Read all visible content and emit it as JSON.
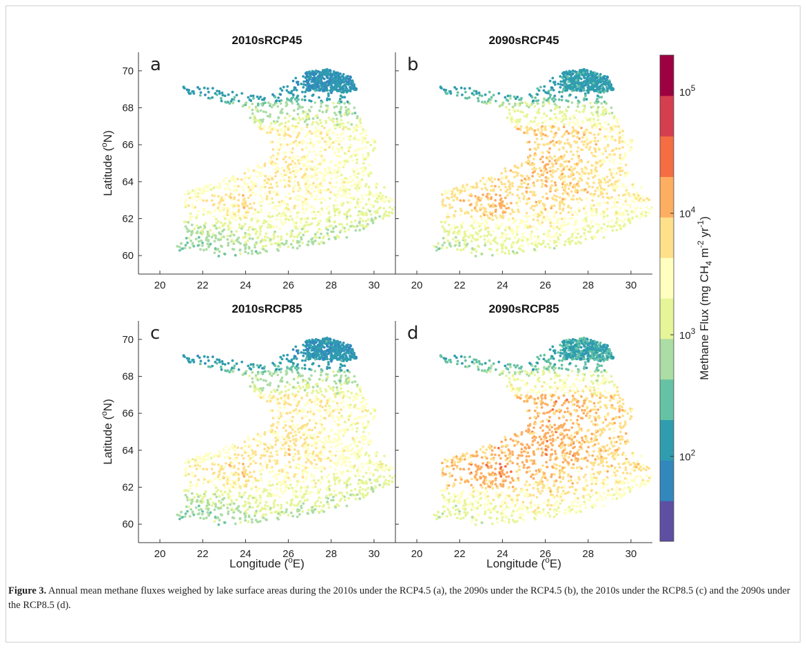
{
  "chart_data": {
    "type": "scatter",
    "layout": "2x2 panels with shared colorbar",
    "panels": [
      {
        "letter": "a",
        "title": "2010sRCP45",
        "scenario": "RCP4.5",
        "period": "2010s"
      },
      {
        "letter": "b",
        "title": "2090sRCP45",
        "scenario": "RCP4.5",
        "period": "2090s"
      },
      {
        "letter": "c",
        "title": "2010sRCP85",
        "scenario": "RCP8.5",
        "period": "2010s"
      },
      {
        "letter": "d",
        "title": "2090sRCP85",
        "scenario": "RCP8.5",
        "period": "2090s"
      }
    ],
    "xlabel_prefix": "Longitude (",
    "xlabel_sup": "o",
    "xlabel_suffix": "E)",
    "ylabel_prefix": "Latitude (",
    "ylabel_sup": "o",
    "ylabel_suffix": "N)",
    "xlim": [
      19,
      31
    ],
    "ylim": [
      59,
      71
    ],
    "xticks": [
      20,
      22,
      24,
      26,
      28,
      30
    ],
    "yticks": [
      60,
      62,
      64,
      66,
      68,
      70
    ],
    "colorbar": {
      "label_parts": [
        "Methane Flux (mg CH",
        "4",
        " m",
        "-2",
        " yr",
        "-1",
        ")"
      ],
      "scale": "log",
      "min": 20,
      "max": 200000,
      "tick_values": [
        100,
        1000,
        10000,
        100000
      ],
      "tick_base": "10",
      "tick_exponents": [
        "2",
        "3",
        "4",
        "5"
      ],
      "colors": [
        "#5e4fa2",
        "#3288bd",
        "#2f9dae",
        "#66c2a5",
        "#abdda4",
        "#e6f598",
        "#ffffbf",
        "#fee08b",
        "#fdae61",
        "#f46d43",
        "#d53e4f",
        "#9e0142"
      ]
    },
    "observed_pattern": {
      "northern_lapland_lat_68_70": "mostly 10^2 (blue-green)",
      "central_finland_lat_62_68": "mostly 10^3 to 10^4 (yellow-orange-red)",
      "southern_finland_lat_60_63": "mixed 10^2 to 10^4",
      "2090s_vs_2010s": "higher fluxes, more red points; RCP8.5 higher than RCP4.5"
    }
  },
  "caption": {
    "label": "Figure 3.",
    "text": " Annual mean methane fluxes weighed by lake surface areas during the 2010s under the RCP4.5 (a), the 2090s under the RCP4.5 (b), the 2010s under the RCP8.5 (c) and the 2090s under the RCP8.5 (d)."
  }
}
